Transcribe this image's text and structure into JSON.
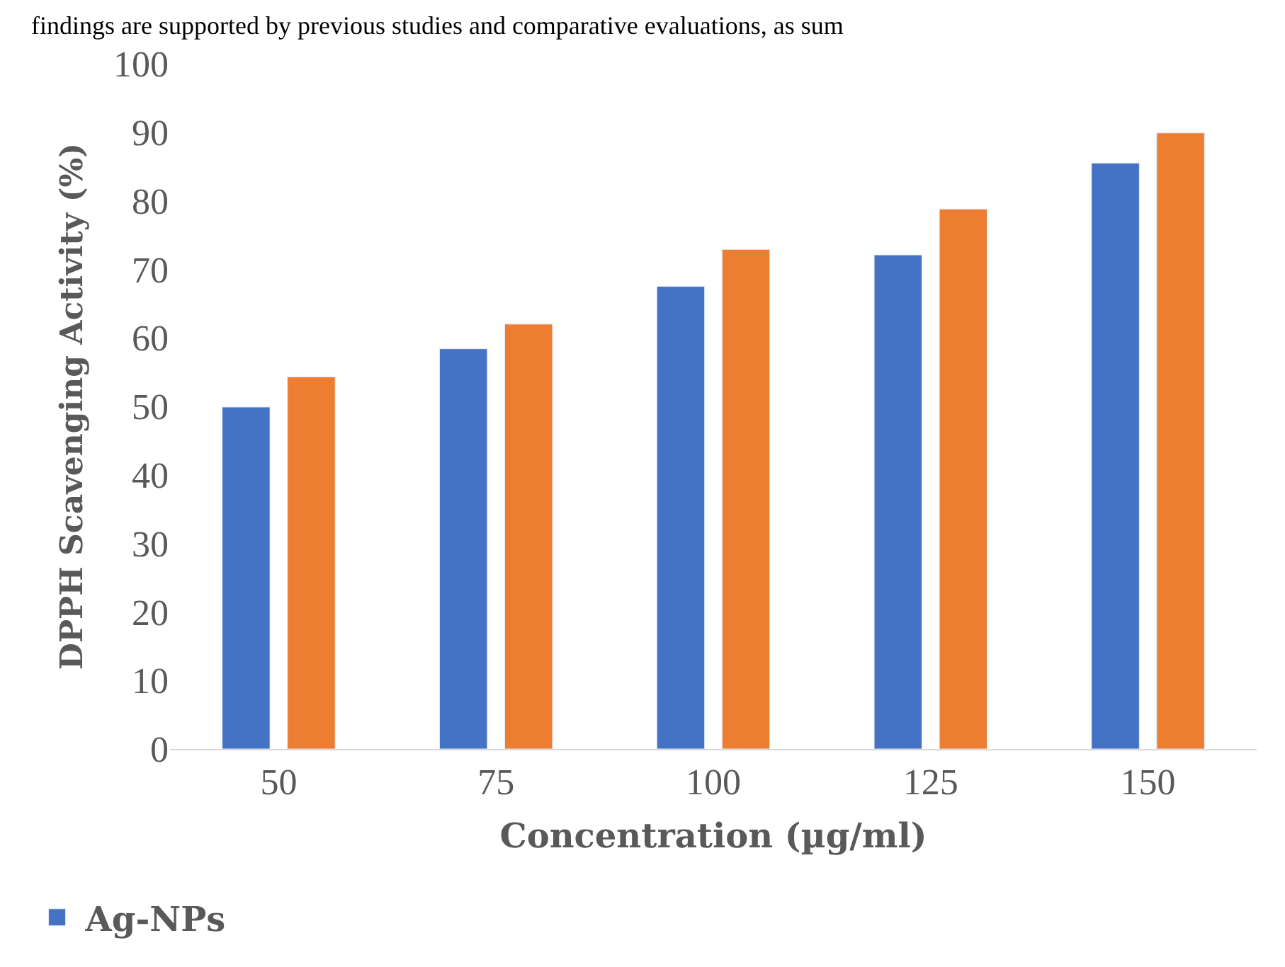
{
  "chart_data": {
    "type": "bar",
    "xlabel": "Concentration (µg/ml)",
    "ylabel": "DPPH Scavenging Activity (%)",
    "annotations": [
      "findings are supported by previous studies and comparative evaluations, as sum"
    ],
    "categories": [
      "50",
      "75",
      "100",
      "125",
      "150"
    ],
    "series": [
      {
        "name": "Ag-NPs",
        "color": "#4472c4",
        "values": [
          49.9,
          58.4,
          67.5,
          72.1,
          85.5
        ]
      },
      {
        "color": "#ed7d31",
        "values": [
          54.3,
          62.0,
          72.9,
          78.8,
          89.9
        ]
      }
    ],
    "ylim": [
      0,
      100
    ],
    "yticks": [
      0,
      10,
      20,
      30,
      40,
      50,
      60,
      70,
      80,
      90,
      100
    ],
    "legend": "bottom left"
  }
}
